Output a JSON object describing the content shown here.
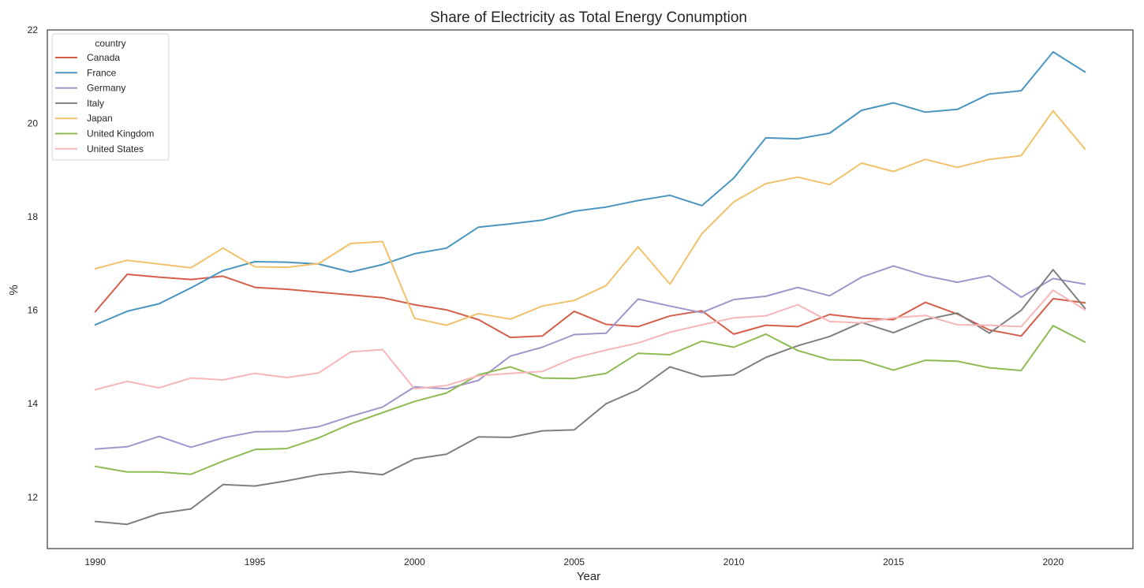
{
  "chart_data": {
    "type": "line",
    "title": "Share of Electricity as Total Energy Conumption",
    "xlabel": "Year",
    "ylabel": "%",
    "xlim": [
      1988.5,
      2022.5
    ],
    "ylim": [
      10.9,
      22.0
    ],
    "xticks": [
      1990,
      1995,
      2000,
      2005,
      2010,
      2015,
      2020
    ],
    "yticks": [
      12,
      14,
      16,
      18,
      20,
      22
    ],
    "grid": false,
    "legend": {
      "title": "country",
      "placement": "top-left"
    },
    "x": [
      1990,
      1991,
      1992,
      1993,
      1994,
      1995,
      1996,
      1997,
      1998,
      1999,
      2000,
      2001,
      2002,
      2003,
      2004,
      2005,
      2006,
      2007,
      2008,
      2009,
      2010,
      2011,
      2012,
      2013,
      2014,
      2015,
      2016,
      2017,
      2018,
      2019,
      2020,
      2021
    ],
    "series": [
      {
        "name": "Canada",
        "color": "#d65f4a",
        "values": [
          15.97,
          16.77,
          16.71,
          16.66,
          16.73,
          16.49,
          16.45,
          16.39,
          16.33,
          16.27,
          16.12,
          16.01,
          15.8,
          15.42,
          15.45,
          15.98,
          15.7,
          15.65,
          15.88,
          15.99,
          15.49,
          15.68,
          15.65,
          15.91,
          15.83,
          15.8,
          16.17,
          15.92,
          15.58,
          15.45,
          16.25,
          16.16
        ]
      },
      {
        "name": "France",
        "color": "#4a96c0",
        "values": [
          15.69,
          15.98,
          16.14,
          16.48,
          16.85,
          17.04,
          17.03,
          16.99,
          16.82,
          16.98,
          17.21,
          17.33,
          17.78,
          17.85,
          17.93,
          18.12,
          18.21,
          18.35,
          18.46,
          18.24,
          18.83,
          19.69,
          19.67,
          19.79,
          20.28,
          20.44,
          20.24,
          20.3,
          20.63,
          20.7,
          21.53,
          21.1
        ]
      },
      {
        "name": "Germany",
        "color": "#a195cc",
        "values": [
          13.03,
          13.08,
          13.3,
          13.07,
          13.27,
          13.4,
          13.41,
          13.51,
          13.73,
          13.93,
          14.36,
          14.32,
          14.5,
          15.02,
          15.21,
          15.48,
          15.51,
          16.24,
          16.09,
          15.95,
          16.23,
          16.3,
          16.49,
          16.31,
          16.71,
          16.95,
          16.74,
          16.6,
          16.74,
          16.28,
          16.68,
          16.56
        ]
      },
      {
        "name": "Italy",
        "color": "#7f7f7f",
        "values": [
          11.48,
          11.42,
          11.65,
          11.75,
          12.27,
          12.24,
          12.35,
          12.48,
          12.55,
          12.48,
          12.82,
          12.92,
          13.29,
          13.28,
          13.42,
          13.44,
          14.0,
          14.3,
          14.79,
          14.58,
          14.62,
          14.99,
          15.24,
          15.44,
          15.74,
          15.52,
          15.8,
          15.94,
          15.51,
          16.0,
          16.87,
          16.04
        ]
      },
      {
        "name": "Japan",
        "color": "#f2c16b",
        "values": [
          16.89,
          17.07,
          16.99,
          16.91,
          17.33,
          16.93,
          16.92,
          17.0,
          17.43,
          17.47,
          15.83,
          15.68,
          15.93,
          15.81,
          16.09,
          16.21,
          16.53,
          17.36,
          16.56,
          17.64,
          18.32,
          18.71,
          18.85,
          18.69,
          19.15,
          18.97,
          19.23,
          19.06,
          19.23,
          19.31,
          20.27,
          19.45
        ]
      },
      {
        "name": "United Kingdom",
        "color": "#8ebb53",
        "values": [
          12.66,
          12.54,
          12.54,
          12.49,
          12.77,
          13.02,
          13.04,
          13.27,
          13.57,
          13.81,
          14.05,
          14.23,
          14.62,
          14.79,
          14.55,
          14.54,
          14.65,
          15.08,
          15.05,
          15.34,
          15.21,
          15.49,
          15.14,
          14.94,
          14.93,
          14.72,
          14.93,
          14.91,
          14.77,
          14.71,
          15.67,
          15.32
        ]
      },
      {
        "name": "United States",
        "color": "#f7b6b9",
        "values": [
          14.3,
          14.48,
          14.34,
          14.55,
          14.51,
          14.65,
          14.56,
          14.66,
          15.11,
          15.16,
          14.32,
          14.39,
          14.6,
          14.65,
          14.69,
          14.98,
          15.15,
          15.3,
          15.53,
          15.69,
          15.84,
          15.88,
          16.12,
          15.76,
          15.73,
          15.84,
          15.89,
          15.69,
          15.68,
          15.65,
          16.43,
          16.01
        ]
      }
    ]
  }
}
